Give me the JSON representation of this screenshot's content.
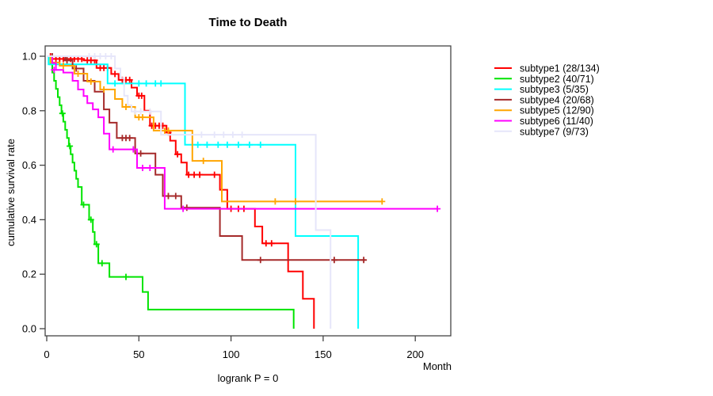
{
  "window": {
    "background": "#ffffff",
    "axis_color": "#444444"
  },
  "chart_data": {
    "type": "line",
    "variant": "kaplan_meier_step",
    "title": "Time to Death",
    "xlabel": "Month",
    "ylabel": "cumulative survival rate",
    "annotation": "logrank P = 0",
    "x_range": [
      0,
      220
    ],
    "y_range": [
      0,
      1
    ],
    "x_ticks": [
      0,
      50,
      100,
      150,
      200
    ],
    "y_ticks": [
      0,
      0.2,
      0.4,
      0.6,
      0.8,
      1
    ],
    "grid": false,
    "legend_position": "right-outside",
    "series": [
      {
        "name": "subtype1 (28/134)",
        "label": "subtype1",
        "events": 28,
        "n": 134,
        "color": "#FF0000",
        "steps": [
          [
            0,
            1
          ],
          [
            3,
            0.99
          ],
          [
            20,
            0.985
          ],
          [
            27,
            0.957
          ],
          [
            35,
            0.935
          ],
          [
            39,
            0.913
          ],
          [
            46,
            0.885
          ],
          [
            49,
            0.855
          ],
          [
            53,
            0.8
          ],
          [
            56,
            0.745
          ],
          [
            65,
            0.72
          ],
          [
            67,
            0.69
          ],
          [
            70,
            0.64
          ],
          [
            73,
            0.61
          ],
          [
            76,
            0.565
          ],
          [
            94,
            0.51
          ],
          [
            98,
            0.44
          ],
          [
            113,
            0.375
          ],
          [
            117,
            0.313
          ],
          [
            131,
            0.21
          ],
          [
            139,
            0.11
          ],
          [
            145,
            0
          ]
        ],
        "censors": [
          [
            2,
            1
          ],
          [
            5,
            0.99
          ],
          [
            7,
            0.99
          ],
          [
            9,
            0.99
          ],
          [
            11,
            0.99
          ],
          [
            13,
            0.99
          ],
          [
            15,
            0.99
          ],
          [
            17,
            0.99
          ],
          [
            19,
            0.99
          ],
          [
            22,
            0.985
          ],
          [
            24,
            0.985
          ],
          [
            26,
            0.985
          ],
          [
            29,
            0.957
          ],
          [
            31,
            0.957
          ],
          [
            33,
            0.957
          ],
          [
            37,
            0.935
          ],
          [
            41,
            0.913
          ],
          [
            43,
            0.913
          ],
          [
            45,
            0.913
          ],
          [
            50,
            0.855
          ],
          [
            51.5,
            0.855
          ],
          [
            57,
            0.745
          ],
          [
            59,
            0.745
          ],
          [
            61,
            0.745
          ],
          [
            63,
            0.745
          ],
          [
            66,
            0.72
          ],
          [
            71,
            0.64
          ],
          [
            77,
            0.565
          ],
          [
            80,
            0.565
          ],
          [
            83,
            0.565
          ],
          [
            91,
            0.565
          ],
          [
            100,
            0.44
          ],
          [
            104,
            0.44
          ],
          [
            107,
            0.44
          ],
          [
            119,
            0.313
          ],
          [
            122,
            0.313
          ]
        ]
      },
      {
        "name": "subtype2 (40/71)",
        "label": "subtype2",
        "events": 40,
        "n": 71,
        "color": "#00E400",
        "steps": [
          [
            0,
            1
          ],
          [
            2,
            0.97
          ],
          [
            3,
            0.94
          ],
          [
            4,
            0.91
          ],
          [
            5,
            0.88
          ],
          [
            6,
            0.85
          ],
          [
            7,
            0.82
          ],
          [
            8,
            0.79
          ],
          [
            9,
            0.76
          ],
          [
            10,
            0.73
          ],
          [
            11,
            0.7
          ],
          [
            12,
            0.67
          ],
          [
            13,
            0.64
          ],
          [
            14,
            0.61
          ],
          [
            15,
            0.58
          ],
          [
            16,
            0.55
          ],
          [
            17,
            0.52
          ],
          [
            19,
            0.455
          ],
          [
            23,
            0.4
          ],
          [
            25,
            0.355
          ],
          [
            26,
            0.31
          ],
          [
            28,
            0.24
          ],
          [
            34,
            0.19
          ],
          [
            52,
            0.135
          ],
          [
            55,
            0.07
          ],
          [
            134,
            0
          ]
        ],
        "censors": [
          [
            8.5,
            0.79
          ],
          [
            12.5,
            0.67
          ],
          [
            20,
            0.455
          ],
          [
            24,
            0.4
          ],
          [
            27,
            0.31
          ],
          [
            30,
            0.24
          ],
          [
            43,
            0.19
          ]
        ]
      },
      {
        "name": "subtype3 (5/35)",
        "label": "subtype3",
        "events": 5,
        "n": 35,
        "color": "#00FFFF",
        "steps": [
          [
            0,
            1
          ],
          [
            1,
            0.97
          ],
          [
            33,
            0.9
          ],
          [
            75,
            0.675
          ],
          [
            135,
            0.34
          ],
          [
            169,
            0
          ]
        ],
        "censors": [
          [
            37,
            0.9
          ],
          [
            42,
            0.9
          ],
          [
            50,
            0.9
          ],
          [
            54,
            0.9
          ],
          [
            59,
            0.9
          ],
          [
            62,
            0.9
          ],
          [
            82,
            0.675
          ],
          [
            87,
            0.675
          ],
          [
            93,
            0.675
          ],
          [
            98,
            0.675
          ],
          [
            104,
            0.675
          ],
          [
            110,
            0.675
          ],
          [
            116,
            0.675
          ]
        ]
      },
      {
        "name": "subtype4 (20/68)",
        "label": "subtype4",
        "events": 20,
        "n": 68,
        "color": "#A52A2A",
        "steps": [
          [
            0,
            1
          ],
          [
            10,
            0.985
          ],
          [
            14,
            0.955
          ],
          [
            20,
            0.91
          ],
          [
            26,
            0.87
          ],
          [
            31,
            0.805
          ],
          [
            34,
            0.756
          ],
          [
            38,
            0.7
          ],
          [
            48,
            0.643
          ],
          [
            59,
            0.565
          ],
          [
            63,
            0.487
          ],
          [
            73,
            0.444
          ],
          [
            94,
            0.34
          ],
          [
            106,
            0.252
          ],
          [
            173,
            0.252
          ]
        ],
        "censors": [
          [
            3,
            1
          ],
          [
            11,
            0.985
          ],
          [
            16,
            0.955
          ],
          [
            41,
            0.7
          ],
          [
            43,
            0.7
          ],
          [
            45,
            0.7
          ],
          [
            51,
            0.643
          ],
          [
            66,
            0.487
          ],
          [
            70,
            0.487
          ],
          [
            76,
            0.444
          ],
          [
            116,
            0.252
          ],
          [
            156,
            0.252
          ],
          [
            172,
            0.252
          ]
        ]
      },
      {
        "name": "subtype5 (12/90)",
        "label": "subtype5",
        "events": 12,
        "n": 90,
        "color": "#FFA500",
        "steps": [
          [
            0,
            1
          ],
          [
            2,
            0.977
          ],
          [
            7,
            0.965
          ],
          [
            15,
            0.936
          ],
          [
            22,
            0.907
          ],
          [
            29,
            0.878
          ],
          [
            37,
            0.843
          ],
          [
            41,
            0.814
          ],
          [
            48,
            0.776
          ],
          [
            58,
            0.727
          ],
          [
            79,
            0.616
          ],
          [
            95,
            0.467
          ],
          [
            182,
            0.467
          ]
        ],
        "censors": [
          [
            9,
            0.965
          ],
          [
            17,
            0.936
          ],
          [
            24,
            0.907
          ],
          [
            31,
            0.878
          ],
          [
            43,
            0.814
          ],
          [
            50,
            0.776
          ],
          [
            52,
            0.776
          ],
          [
            64,
            0.727
          ],
          [
            66,
            0.727
          ],
          [
            85,
            0.616
          ],
          [
            124,
            0.467
          ],
          [
            135,
            0.467
          ],
          [
            182,
            0.467
          ]
        ]
      },
      {
        "name": "subtype6 (11/40)",
        "label": "subtype6",
        "events": 11,
        "n": 40,
        "color": "#FF00FF",
        "steps": [
          [
            0,
            1
          ],
          [
            3,
            0.975
          ],
          [
            5,
            0.95
          ],
          [
            9,
            0.94
          ],
          [
            14,
            0.91
          ],
          [
            17,
            0.878
          ],
          [
            20,
            0.854
          ],
          [
            22,
            0.828
          ],
          [
            25,
            0.805
          ],
          [
            28,
            0.776
          ],
          [
            31,
            0.716
          ],
          [
            34,
            0.658
          ],
          [
            49,
            0.59
          ],
          [
            64,
            0.44
          ],
          [
            212,
            0.44
          ]
        ],
        "censors": [
          [
            4,
            0.95
          ],
          [
            36,
            0.658
          ],
          [
            47,
            0.658
          ],
          [
            52,
            0.59
          ],
          [
            56,
            0.59
          ],
          [
            74,
            0.44
          ],
          [
            212,
            0.44
          ]
        ]
      },
      {
        "name": "subtype7 (9/73)",
        "label": "subtype7",
        "events": 9,
        "n": 73,
        "color": "#E6E6FA",
        "steps": [
          [
            0,
            1
          ],
          [
            37,
            0.955
          ],
          [
            40,
            0.92
          ],
          [
            42,
            0.855
          ],
          [
            44,
            0.82
          ],
          [
            46,
            0.797
          ],
          [
            62,
            0.712
          ],
          [
            146,
            0.362
          ],
          [
            154,
            0
          ]
        ],
        "censors": [
          [
            23,
            1
          ],
          [
            26,
            1
          ],
          [
            29,
            1
          ],
          [
            32,
            1
          ],
          [
            35,
            1
          ],
          [
            48,
            0.797
          ],
          [
            51,
            0.797
          ],
          [
            56,
            0.797
          ],
          [
            84,
            0.712
          ],
          [
            91,
            0.712
          ],
          [
            96,
            0.712
          ],
          [
            101,
            0.712
          ],
          [
            106,
            0.712
          ]
        ]
      }
    ]
  }
}
